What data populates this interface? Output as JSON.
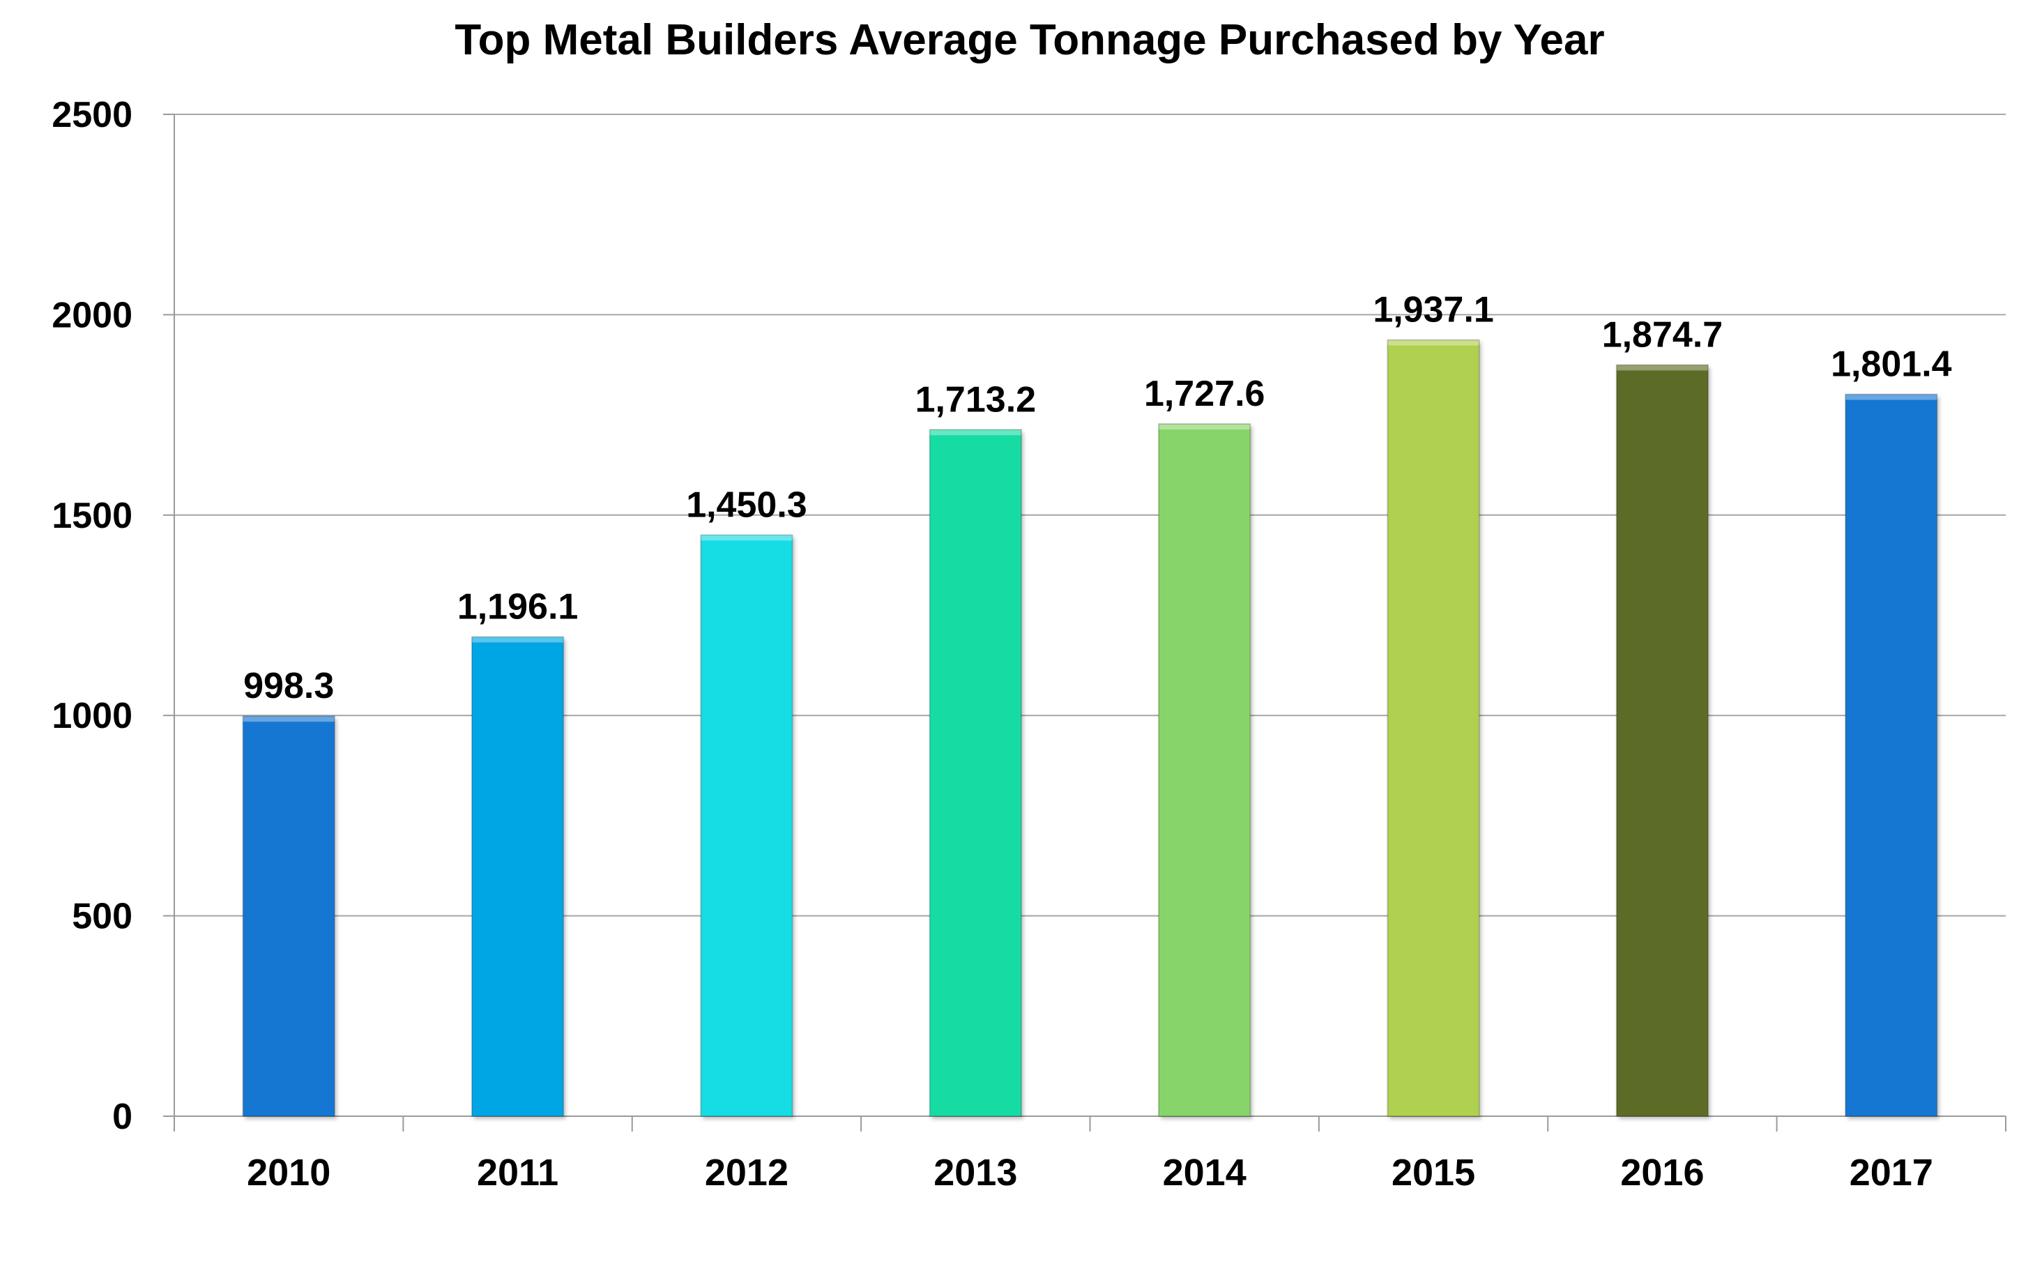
{
  "chart_data": {
    "type": "bar",
    "title": "Top Metal Builders Average Tonnage Purchased by Year",
    "xlabel": "",
    "ylabel": "",
    "categories": [
      "2010",
      "2011",
      "2012",
      "2013",
      "2014",
      "2015",
      "2016",
      "2017"
    ],
    "values": [
      998.3,
      1196.1,
      1450.3,
      1713.2,
      1727.6,
      1937.1,
      1874.7,
      1801.4
    ],
    "data_labels": [
      "998.3",
      "1,196.1",
      "1,450.3",
      "1,713.2",
      "1,727.6",
      "1,937.1",
      "1,874.7",
      "1,801.4"
    ],
    "bar_colors": [
      "#1677D2",
      "#06A6E4",
      "#13DCE4",
      "#14DCA4",
      "#87D56A",
      "#B0D050",
      "#5B6C28",
      "#1677D2"
    ],
    "ylim": [
      0,
      2500
    ],
    "yticks": [
      0,
      500,
      1000,
      1500,
      2000,
      2500
    ],
    "ytick_labels": [
      "0",
      "500",
      "1000",
      "1500",
      "2000",
      "2500"
    ],
    "grid": true,
    "legend": "none"
  }
}
